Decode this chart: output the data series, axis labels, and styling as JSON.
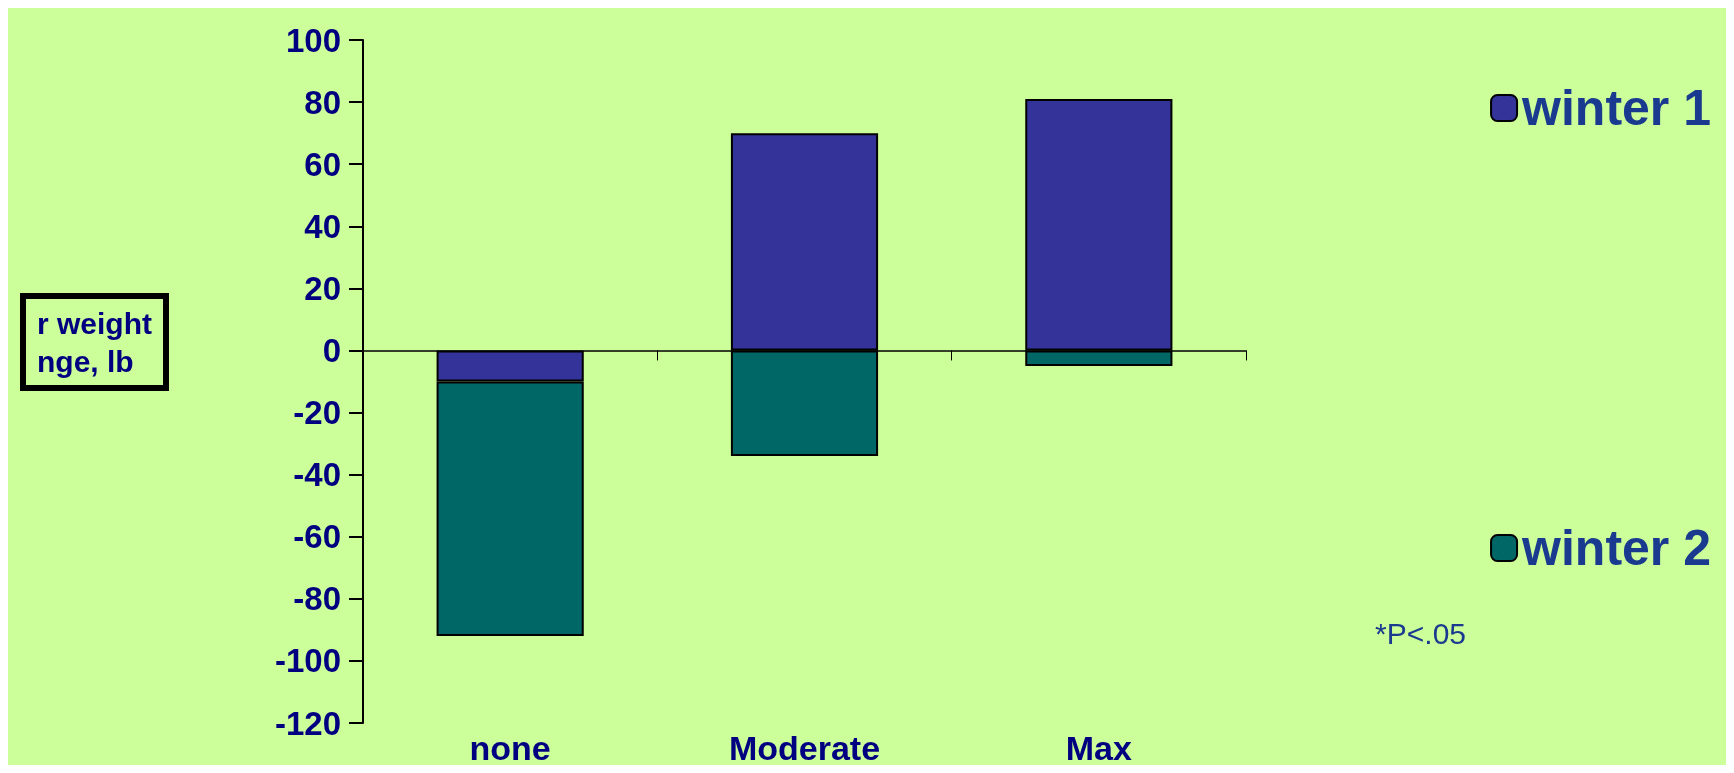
{
  "chart_data": {
    "type": "bar",
    "stacked": true,
    "ylabel": "r weight\nnge, lb",
    "categories": [
      "none",
      "Moderate",
      "Max"
    ],
    "series": [
      {
        "name": "winter 1",
        "color": "#333399",
        "values": [
          -10,
          70,
          81
        ]
      },
      {
        "name": "winter 2",
        "color": "#006666",
        "values": [
          -82,
          -34,
          -5
        ]
      }
    ],
    "ylim": [
      -120,
      100
    ],
    "yticks": [
      -120,
      -100,
      -80,
      -60,
      -40,
      -20,
      0,
      20,
      40,
      60,
      80,
      100
    ],
    "legend": "right",
    "annotations": [
      "*P<.05"
    ]
  }
}
